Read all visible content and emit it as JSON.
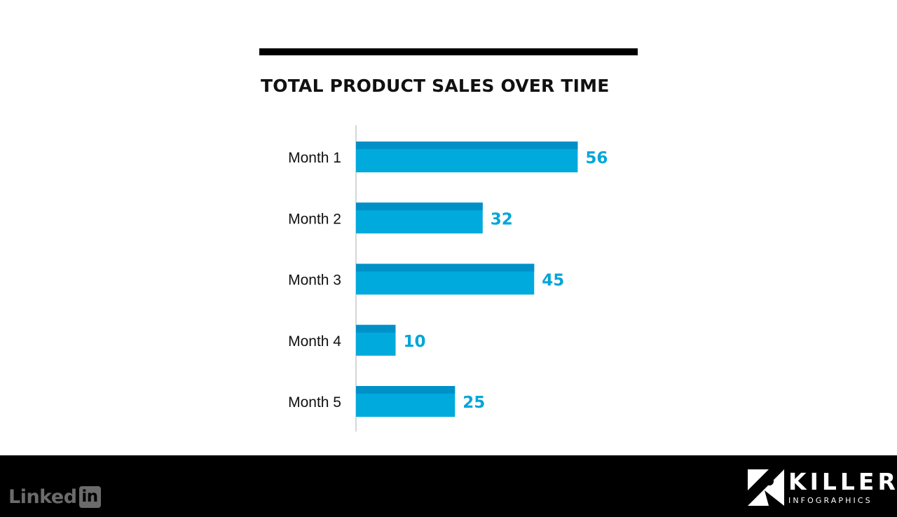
{
  "chart_data": {
    "type": "bar",
    "orientation": "horizontal",
    "title": "TOTAL PRODUCT SALES OVER TIME",
    "categories": [
      "Month 1",
      "Month 2",
      "Month 3",
      "Month 4",
      "Month 5"
    ],
    "values": [
      56,
      32,
      45,
      10,
      25
    ],
    "data_labels": [
      "56",
      "32",
      "45",
      "10",
      "25"
    ],
    "xlabel": "",
    "ylabel": "",
    "xlim": [
      0,
      100
    ],
    "grid": false,
    "legend": "none",
    "bar_color": "#00AADD",
    "bar_top_color": "#0090C8",
    "label_color": "#00A6D9"
  },
  "footer": {
    "linkedin_word": "Linked",
    "linkedin_box": "in",
    "brand_name": "KILLER",
    "brand_sub": "INFOGRAPHICS"
  },
  "colors": {
    "background": "#FFFFFF",
    "footer": "#000000",
    "rule": "#000000",
    "axis": "#BBBBBB",
    "linkedin_gray": "#6B6B6B"
  },
  "icons": {
    "linkedin": "linkedin-logo-icon",
    "killer": "killer-infographics-logo-icon"
  }
}
